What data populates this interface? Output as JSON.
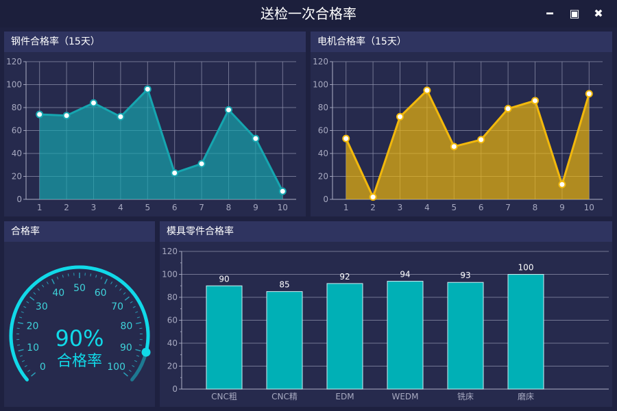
{
  "window": {
    "title": "送检一次合格率",
    "controls": {
      "minimize": "━",
      "maximize": "▣",
      "close": "✖"
    }
  },
  "colors": {
    "background": "#1e2140",
    "panel": "#262a4d",
    "panel_header": "#2f3460",
    "teal": "#16a6b0",
    "gold": "#f2b90c",
    "bar": "#00b0b6",
    "gauge": "#11d9e8"
  },
  "panels": {
    "steel": {
      "title": "钢件合格率（15天）"
    },
    "motor": {
      "title": "电机合格率（15天）"
    },
    "gauge": {
      "title": "合格率"
    },
    "mold": {
      "title": "模具零件合格率"
    }
  },
  "gauge": {
    "value": 90,
    "value_text": "90%",
    "label": "合格率",
    "scale": [
      "0",
      "10",
      "20",
      "30",
      "40",
      "50",
      "60",
      "70",
      "80",
      "90",
      "100"
    ]
  },
  "chart_data": [
    {
      "type": "area",
      "title": "钢件合格率（15天）",
      "x": [
        1,
        2,
        3,
        4,
        5,
        6,
        7,
        8,
        9,
        10
      ],
      "values": [
        74,
        73,
        84,
        72,
        96,
        23,
        31,
        78,
        53,
        7
      ],
      "ylim": [
        0,
        120
      ],
      "yticks": [
        0,
        20,
        40,
        60,
        80,
        100,
        120
      ],
      "grid": true,
      "color": "#16a6b0"
    },
    {
      "type": "area",
      "title": "电机合格率（15天）",
      "x": [
        1,
        2,
        3,
        4,
        5,
        6,
        7,
        8,
        9,
        10
      ],
      "values": [
        53,
        2,
        72,
        95,
        46,
        52,
        79,
        86,
        13,
        92
      ],
      "ylim": [
        0,
        120
      ],
      "yticks": [
        0,
        20,
        40,
        60,
        80,
        100,
        120
      ],
      "grid": true,
      "color": "#f2b90c"
    },
    {
      "type": "bar",
      "title": "模具零件合格率",
      "categories": [
        "CNC粗",
        "CNC精",
        "EDM",
        "WEDM",
        "铣床",
        "磨床"
      ],
      "values": [
        90,
        85,
        92,
        94,
        93,
        100
      ],
      "ylim": [
        0,
        120
      ],
      "yticks": [
        0,
        20,
        40,
        60,
        80,
        100,
        120
      ],
      "grid": true,
      "color": "#00b0b6"
    }
  ]
}
